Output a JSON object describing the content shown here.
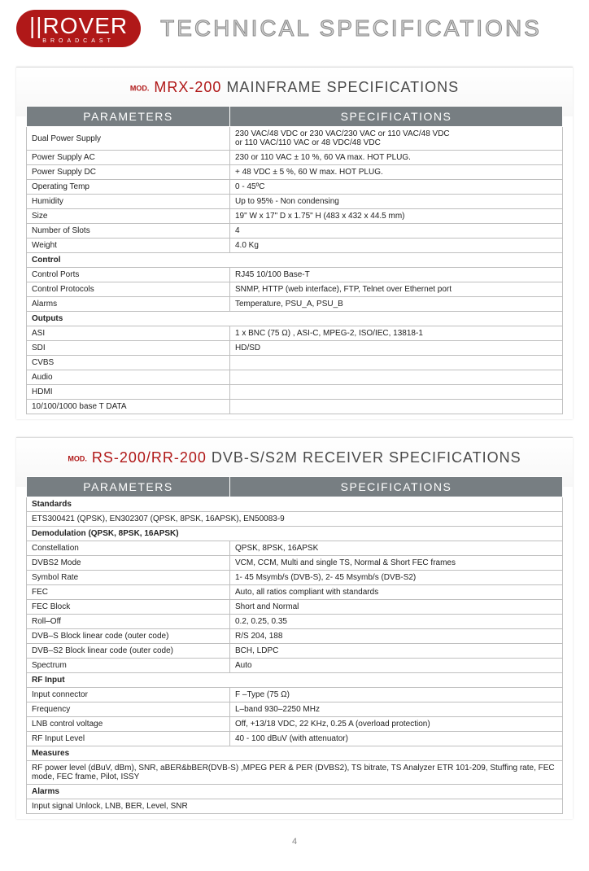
{
  "logo": {
    "main": "||ROVER",
    "sub": "BROADCAST"
  },
  "page_title": "TECHNICAL SPECIFICATIONS",
  "page_number": "4",
  "colors": {
    "brand_red": "#b01818",
    "table_header_bg": "#777e82",
    "table_border": "#bfbfbf",
    "title_outline": "#888888"
  },
  "section1": {
    "mod_prefix": "MOD.",
    "mod_name": "MRX-200",
    "title_rest": "MAINFRAME SPECIFICATIONS",
    "col1": "PARAMETERS",
    "col2": "SPECIFICATIONS",
    "rows": [
      {
        "p": "Dual Power Supply",
        "s": "230 VAC/48 VDC or 230 VAC/230 VAC or 110 VAC/48 VDC\nor 110 VAC/110 VAC or 48 VDC/48 VDC"
      },
      {
        "p": "Power Supply AC",
        "s": "230 or 110 VAC ± 10 %, 60 VA max. HOT PLUG."
      },
      {
        "p": "Power Supply DC",
        "s": "+ 48 VDC ± 5 %, 60 W max. HOT PLUG."
      },
      {
        "p": "Operating Temp",
        "s": "0 - 45ºC"
      },
      {
        "p": "Humidity",
        "s": "Up to 95% - Non condensing"
      },
      {
        "p": "Size",
        "s": "19\" W x 17\" D x 1.75\" H (483 x 432 x 44.5 mm)"
      },
      {
        "p": "Number of Slots",
        "s": "4"
      },
      {
        "p": "Weight",
        "s": "4.0 Kg"
      },
      {
        "sub": "Control"
      },
      {
        "p": "Control Ports",
        "s": "RJ45 10/100 Base-T"
      },
      {
        "p": "Control Protocols",
        "s": "SNMP, HTTP (web interface), FTP, Telnet over Ethernet port"
      },
      {
        "p": "Alarms",
        "s": "Temperature, PSU_A, PSU_B"
      },
      {
        "sub": "Outputs"
      },
      {
        "p": "ASI",
        "s": "1 x BNC (75 Ω) , ASI-C, MPEG-2, ISO/IEC, 13818-1"
      },
      {
        "p": "SDI",
        "s": "HD/SD"
      },
      {
        "p": "CVBS",
        "s": ""
      },
      {
        "p": "Audio",
        "s": ""
      },
      {
        "p": "HDMI",
        "s": ""
      },
      {
        "p": "10/100/1000 base T DATA",
        "s": ""
      }
    ]
  },
  "section2": {
    "mod_prefix": "MOD.",
    "mod_name": "RS-200/RR-200",
    "title_rest": "DVB-S/S2M RECEIVER SPECIFICATIONS",
    "col1": "PARAMETERS",
    "col2": "SPECIFICATIONS",
    "rows": [
      {
        "sub": "Standards"
      },
      {
        "full": " ETS300421 (QPSK), EN302307 (QPSK, 8PSK, 16APSK), EN50083-9"
      },
      {
        "sub": "Demodulation (QPSK, 8PSK, 16APSK)"
      },
      {
        "p": "Constellation",
        "s": "QPSK, 8PSK, 16APSK"
      },
      {
        "p": "DVBS2 Mode",
        "s": "VCM, CCM, Multi and single TS, Normal & Short FEC frames"
      },
      {
        "p": "Symbol Rate",
        "s": "1- 45 Msymb/s (DVB-S), 2- 45 Msymb/s (DVB-S2)"
      },
      {
        "p": "FEC",
        "s": "Auto, all ratios compliant with standards"
      },
      {
        "p": "FEC Block",
        "s": "Short and Normal"
      },
      {
        "p": "Roll–Off",
        "s": "0.2, 0.25, 0.35"
      },
      {
        "p": "DVB–S Block linear code (outer code)",
        "s": "R/S 204, 188"
      },
      {
        "p": "DVB–S2 Block linear code (outer code)",
        "s": "BCH, LDPC"
      },
      {
        "p": "Spectrum",
        "s": "Auto"
      },
      {
        "sub": "RF Input"
      },
      {
        "p": "Input connector",
        "s": "F –Type (75 Ω)"
      },
      {
        "p": "Frequency",
        "s": "L–band 930–2250 MHz"
      },
      {
        "p": "LNB control voltage",
        "s": "Off, +13/18 VDC, 22 KHz, 0.25 A (overload protection)"
      },
      {
        "p": "RF Input Level",
        "s": "40 - 100 dBuV (with attenuator)"
      },
      {
        "sub": "Measures"
      },
      {
        "full": "RF power level (dBuV, dBm), SNR, aBER&bBER(DVB-S) ,MPEG PER & PER (DVBS2), TS bitrate, TS Analyzer ETR 101-209, Stuffing rate, FEC mode, FEC frame, Pilot, ISSY"
      },
      {
        "sub": "Alarms"
      },
      {
        "full": "Input signal Unlock, LNB, BER, Level, SNR"
      }
    ]
  }
}
